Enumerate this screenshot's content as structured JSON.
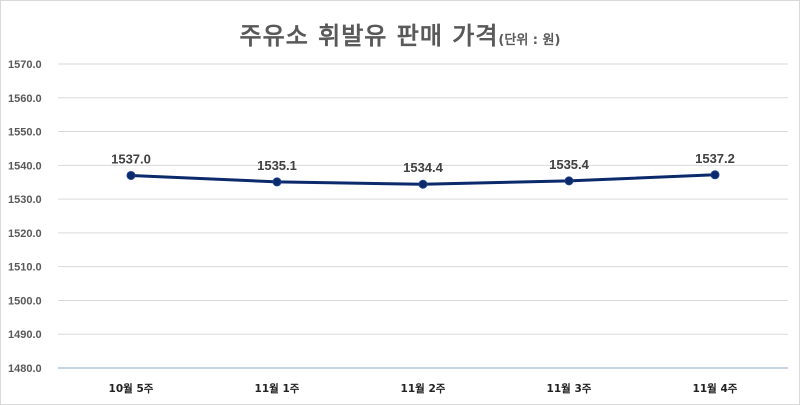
{
  "chart_data": {
    "type": "line",
    "title": "주유소 휘발유 판매 가격",
    "subtitle": "(단위 : 원)",
    "xlabel": "",
    "ylabel": "",
    "categories": [
      "10월 5주",
      "11월 1주",
      "11월 2주",
      "11월 3주",
      "11월 4주"
    ],
    "series": [
      {
        "name": "휘발유 판매 가격",
        "values": [
          1537.0,
          1535.1,
          1534.4,
          1535.4,
          1537.2
        ],
        "color": "#0b2a6b"
      }
    ],
    "data_labels": [
      "1537.0",
      "1535.1",
      "1534.4",
      "1535.4",
      "1537.2"
    ],
    "ylim": [
      1480,
      1570
    ],
    "yticks": [
      "1570.0",
      "1560.0",
      "1550.0",
      "1540.0",
      "1530.0",
      "1520.0",
      "1510.0",
      "1500.0",
      "1490.0",
      "1480.0"
    ],
    "grid": true,
    "legend": "none"
  },
  "colors": {
    "line": "#0b2a6b",
    "grid": "#d9d9d9",
    "axis": "#b4c6d9",
    "title": "#595959"
  }
}
